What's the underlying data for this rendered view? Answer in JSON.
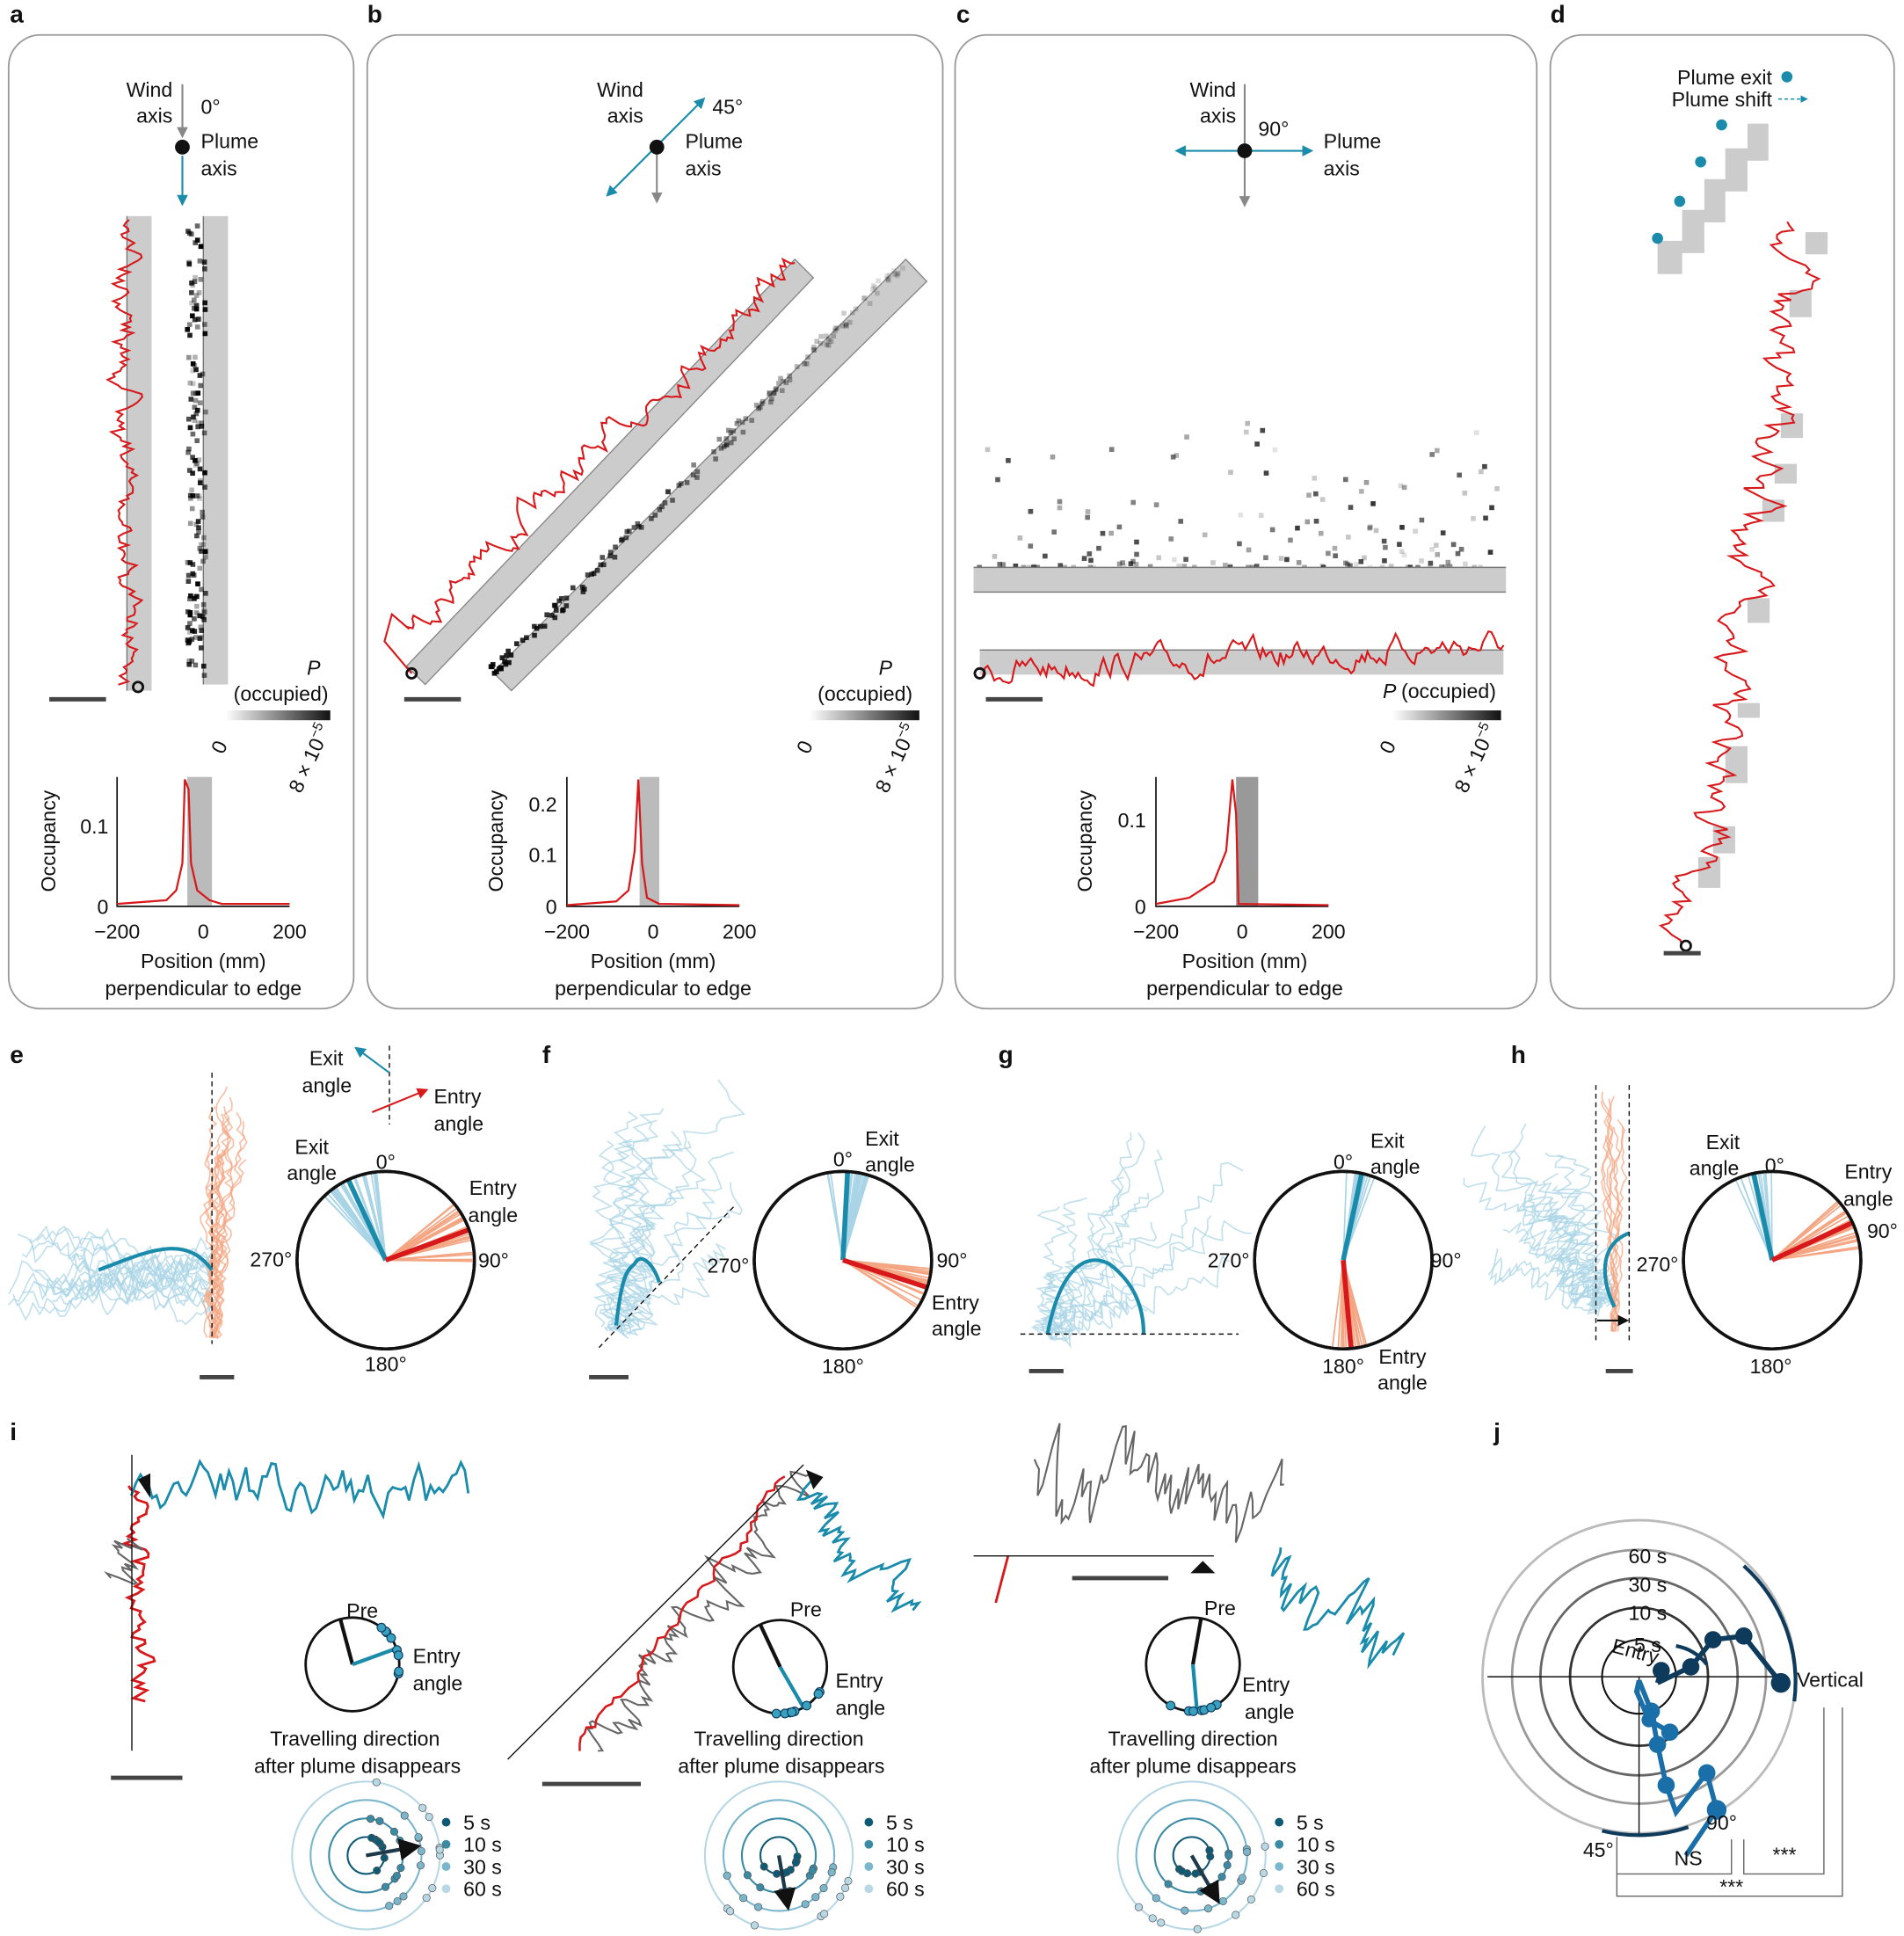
{
  "panels": {
    "a": {
      "letter": "a",
      "wind_axis": [
        "Wind",
        "axis"
      ],
      "angle": "0°",
      "plume_axis": [
        "Plume",
        "axis"
      ],
      "colorbar": {
        "symbol": "P",
        "label": "(occupied)",
        "min": "0",
        "max_base": "8 × 10",
        "max_exp": "−5"
      },
      "occupancy": {
        "ylabel": "Occupancy",
        "yticks": [
          "0",
          "0.1"
        ],
        "xticks": [
          "−200",
          "0",
          "200"
        ],
        "xlabel": [
          "Position (mm)",
          "perpendicular to edge"
        ]
      }
    },
    "b": {
      "letter": "b",
      "wind_axis": [
        "Wind",
        "axis"
      ],
      "angle": "45°",
      "plume_axis": [
        "Plume",
        "axis"
      ],
      "colorbar": {
        "symbol": "P",
        "label": "(occupied)",
        "min": "0",
        "max_base": "8 × 10",
        "max_exp": "−5"
      },
      "occupancy": {
        "ylabel": "Occupancy",
        "yticks": [
          "0",
          "0.1",
          "0.2"
        ],
        "xticks": [
          "−200",
          "0",
          "200"
        ],
        "xlabel": [
          "Position (mm)",
          "perpendicular to edge"
        ]
      }
    },
    "c": {
      "letter": "c",
      "wind_axis": [
        "Wind",
        "axis"
      ],
      "angle": "90°",
      "plume_axis": [
        "Plume",
        "axis"
      ],
      "colorbar": {
        "symbol": "P",
        "label": "(occupied)",
        "min": "0",
        "max_base": "8 × 10",
        "max_exp": "−5"
      },
      "occupancy": {
        "ylabel": "Occupancy",
        "yticks": [
          "0",
          "0.1"
        ],
        "xticks": [
          "−200",
          "0",
          "200"
        ],
        "xlabel": [
          "Position (mm)",
          "perpendicular to edge"
        ]
      }
    },
    "d": {
      "letter": "d",
      "legend": [
        "Plume exit",
        "Plume shift"
      ]
    },
    "e": {
      "letter": "e",
      "inset": {
        "exit": [
          "Exit",
          "angle"
        ],
        "entry": [
          "Entry",
          "angle"
        ]
      },
      "polar": {
        "exit": [
          "Exit",
          "angle"
        ],
        "entry": [
          "Entry",
          "angle"
        ],
        "angles": [
          "0°",
          "90°",
          "180°",
          "270°"
        ]
      }
    },
    "f": {
      "letter": "f",
      "polar": {
        "exit": [
          "Exit",
          "angle"
        ],
        "entry": [
          "Entry",
          "angle"
        ],
        "angles": [
          "0°",
          "90°",
          "180°",
          "270°"
        ]
      }
    },
    "g": {
      "letter": "g",
      "polar": {
        "exit": [
          "Exit",
          "angle"
        ],
        "entry": [
          "Entry",
          "angle"
        ],
        "angles": [
          "0°",
          "90°",
          "180°",
          "270°"
        ]
      }
    },
    "h": {
      "letter": "h",
      "polar": {
        "exit": [
          "Exit",
          "angle"
        ],
        "entry": [
          "Entry",
          "angle"
        ],
        "angles": [
          "0°",
          "90°",
          "180°",
          "270°"
        ]
      }
    },
    "i": {
      "letter": "i",
      "subpanels": [
        {
          "pre": "Pre",
          "entry": [
            "Entry",
            "angle"
          ],
          "caption": [
            "Travelling direction",
            "after plume disappears"
          ],
          "legend": [
            "5 s",
            "10 s",
            "30 s",
            "60 s"
          ]
        },
        {
          "pre": "Pre",
          "entry": [
            "Entry",
            "angle"
          ],
          "caption": [
            "Travelling direction",
            "after plume disappears"
          ],
          "legend": [
            "5 s",
            "10 s",
            "30 s",
            "60 s"
          ]
        },
        {
          "pre": "Pre",
          "entry": [
            "Entry",
            "angle"
          ],
          "caption": [
            "Travelling direction",
            "after plume disappears"
          ],
          "legend": [
            "5 s",
            "10 s",
            "30 s",
            "60 s"
          ]
        }
      ]
    },
    "j": {
      "letter": "j",
      "rings": [
        "60 s",
        "30 s",
        "10 s",
        "5 s"
      ],
      "entry": "Entry",
      "vertical": "Vertical",
      "angles": [
        "45°",
        "90°"
      ],
      "stats": [
        "NS",
        "***",
        "***"
      ]
    }
  }
}
